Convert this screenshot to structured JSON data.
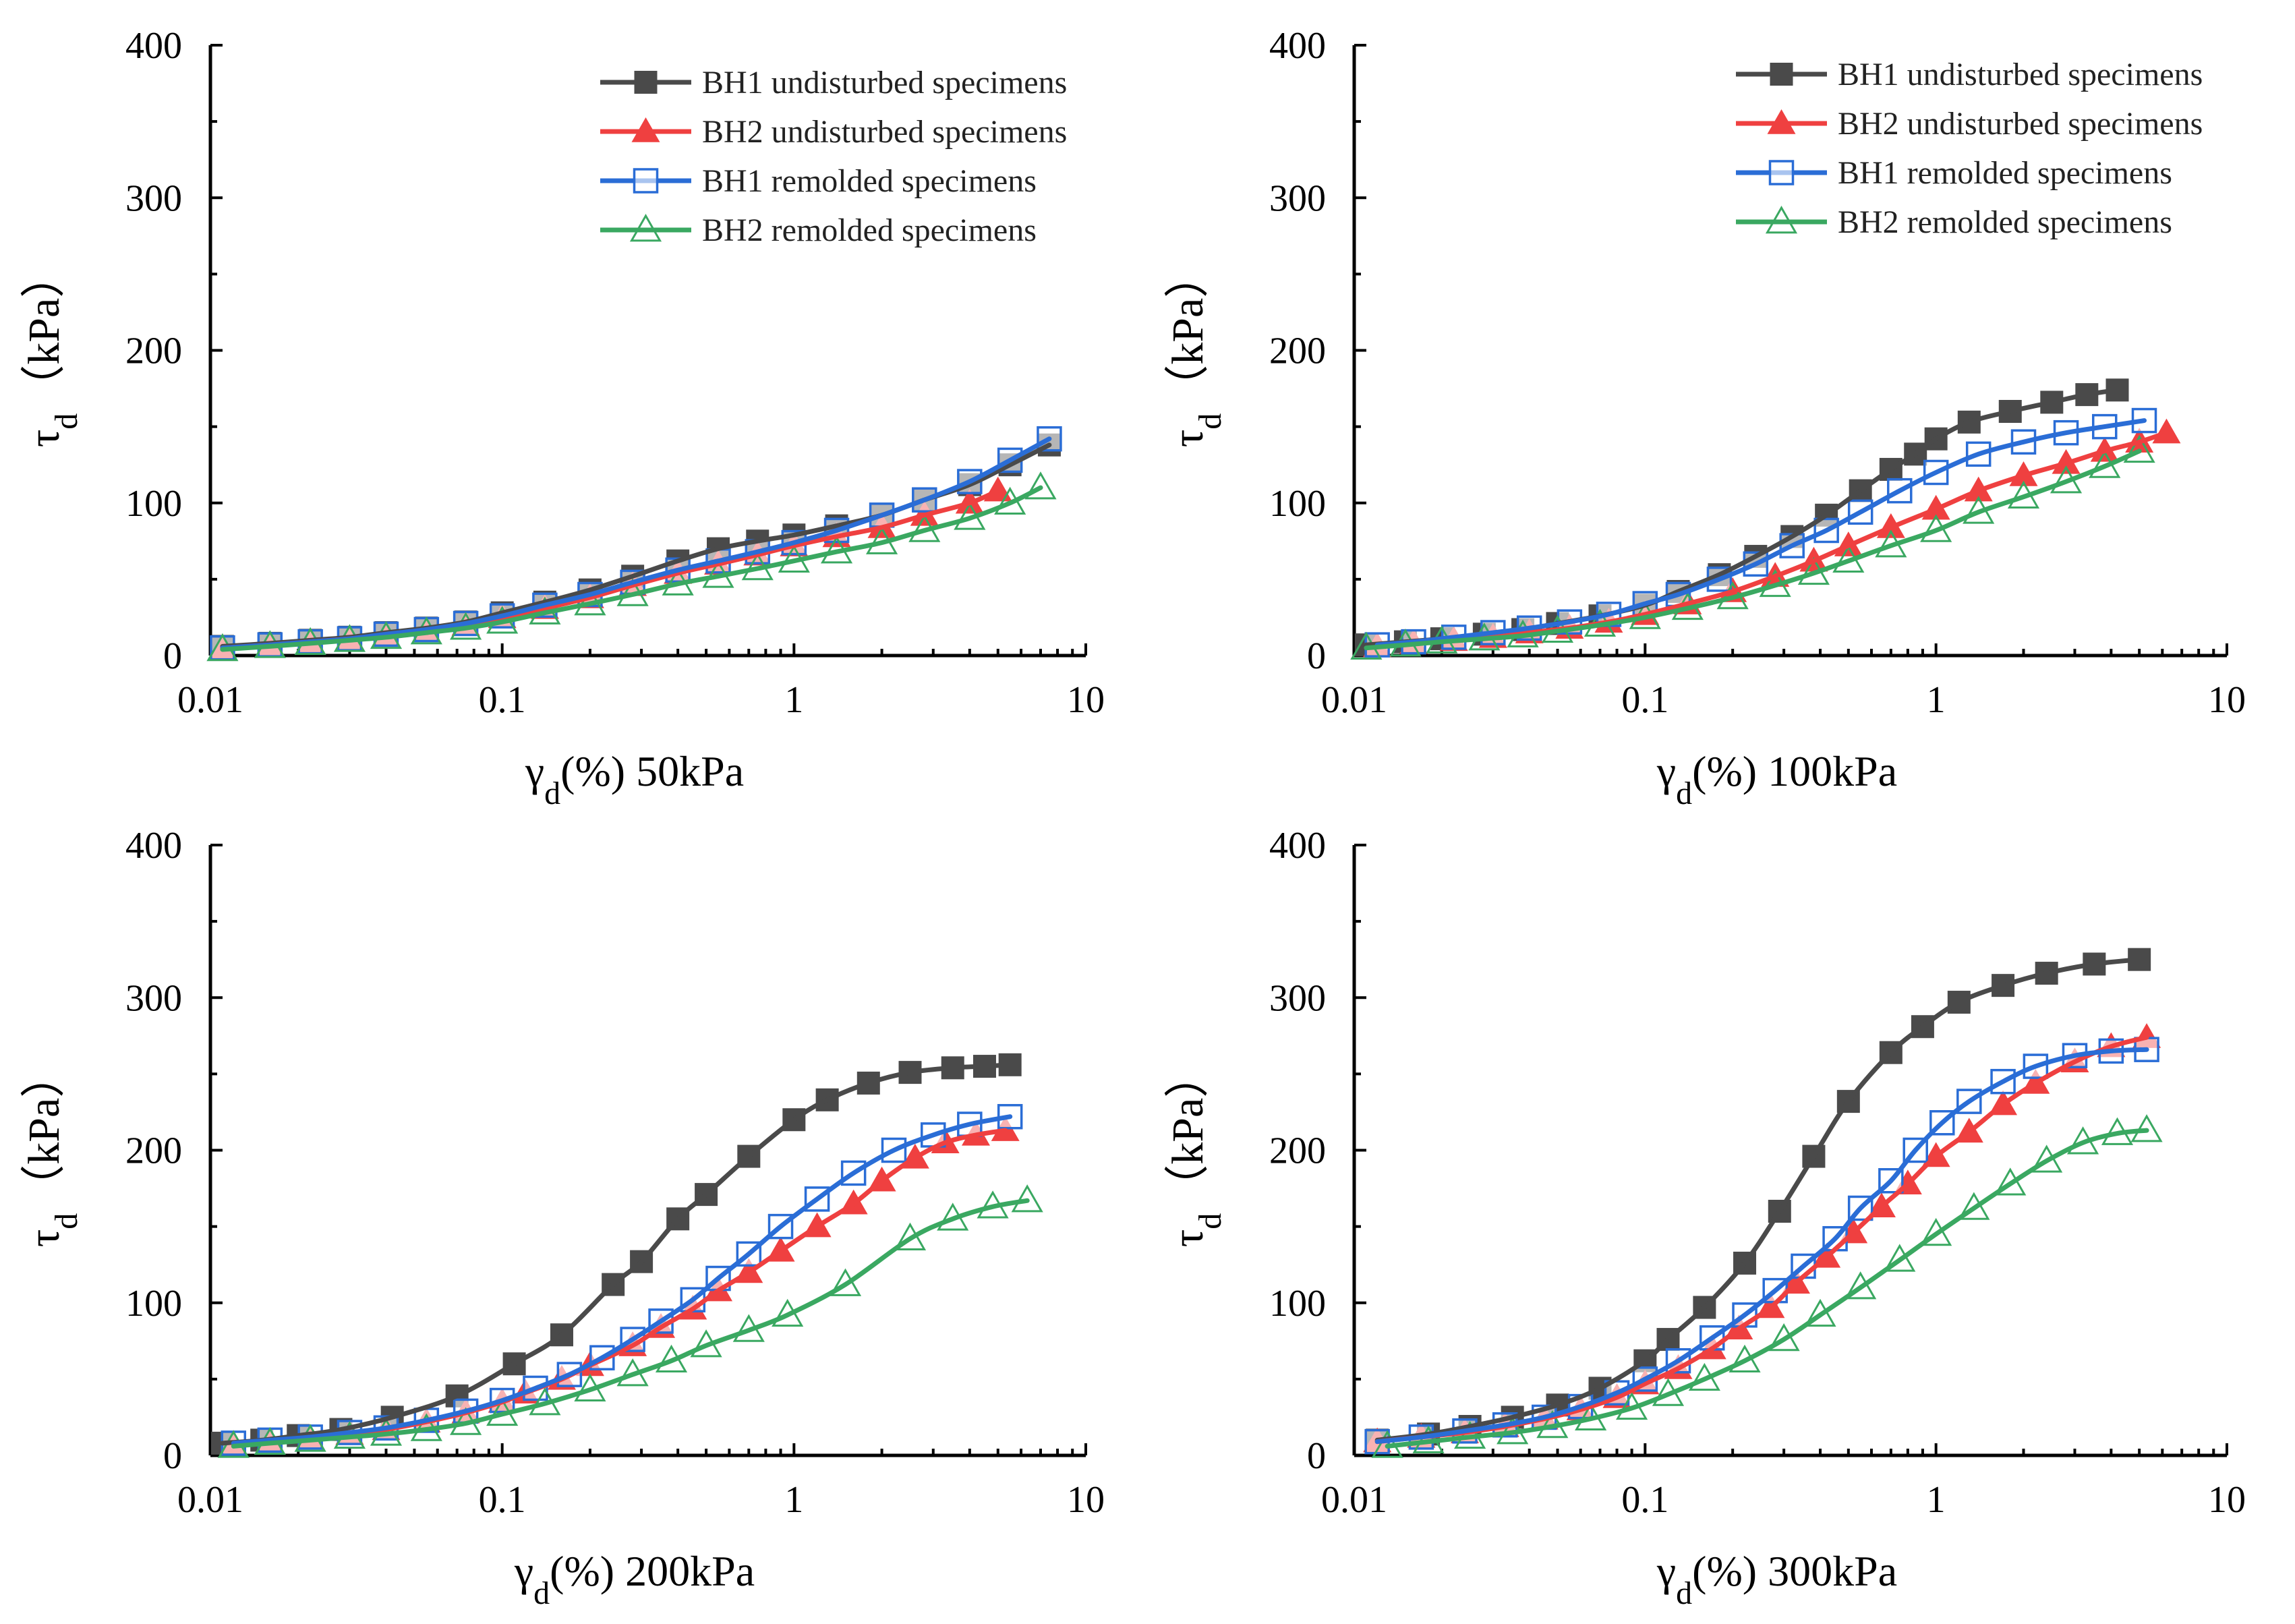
{
  "figure": {
    "y_label_main": "τ",
    "y_label_sub": "d",
    "y_label_unit": "（kPa）",
    "x_label_main": "γ",
    "x_label_sub": "d",
    "x_label_unit": "(%)"
  },
  "series_styles": [
    {
      "name": "BH1 undisturbed specimens",
      "color": "#4a4a4a",
      "marker": "square-filled"
    },
    {
      "name": "BH2 undisturbed specimens",
      "color": "#ef4040",
      "marker": "triangle-filled"
    },
    {
      "name": "BH1 remolded specimens",
      "color": "#2a6dd6",
      "marker": "square-open"
    },
    {
      "name": "BH2 remolded specimens",
      "color": "#3aa861",
      "marker": "triangle-open"
    }
  ],
  "chart_data": [
    {
      "type": "line",
      "title": "50kPa",
      "xlabel": "γd(%) 50kPa",
      "ylabel": "τd（kPa）",
      "xscale": "log",
      "xlim": [
        0.01,
        10
      ],
      "ylim": [
        0,
        400
      ],
      "x_ticks": [
        "0.01",
        "0.1",
        "1",
        "10"
      ],
      "y_ticks": [
        "0",
        "100",
        "200",
        "300",
        "400"
      ],
      "legend": "top-right",
      "series": [
        {
          "name": "BH1 undisturbed specimens",
          "x": [
            0.011,
            0.016,
            0.022,
            0.03,
            0.04,
            0.055,
            0.075,
            0.1,
            0.14,
            0.2,
            0.28,
            0.4,
            0.55,
            0.75,
            1.0,
            1.4,
            2.0,
            2.8,
            4.0,
            5.5,
            7.5
          ],
          "y": [
            6,
            8,
            10,
            12,
            15,
            18,
            22,
            28,
            35,
            43,
            52,
            62,
            70,
            75,
            79,
            85,
            92,
            102,
            112,
            125,
            138
          ]
        },
        {
          "name": "BH2 undisturbed specimens",
          "x": [
            0.011,
            0.016,
            0.022,
            0.03,
            0.04,
            0.055,
            0.075,
            0.1,
            0.14,
            0.2,
            0.28,
            0.4,
            0.55,
            0.75,
            1.0,
            1.4,
            2.0,
            2.8,
            4.0,
            5.0
          ],
          "y": [
            5,
            7,
            9,
            11,
            13,
            16,
            20,
            25,
            31,
            38,
            46,
            54,
            60,
            66,
            72,
            78,
            84,
            92,
            100,
            108
          ]
        },
        {
          "name": "BH1 remolded specimens",
          "x": [
            0.011,
            0.016,
            0.022,
            0.03,
            0.04,
            0.055,
            0.075,
            0.1,
            0.14,
            0.2,
            0.28,
            0.4,
            0.55,
            0.75,
            1.0,
            1.4,
            2.0,
            2.8,
            4.0,
            5.5,
            7.5
          ],
          "y": [
            5,
            7,
            9,
            11,
            14,
            17,
            21,
            26,
            33,
            40,
            48,
            56,
            62,
            68,
            74,
            82,
            92,
            102,
            114,
            128,
            142
          ]
        },
        {
          "name": "BH2 remolded specimens",
          "x": [
            0.011,
            0.016,
            0.022,
            0.03,
            0.04,
            0.055,
            0.075,
            0.1,
            0.14,
            0.2,
            0.28,
            0.4,
            0.55,
            0.75,
            1.0,
            1.4,
            2.0,
            2.8,
            4.0,
            5.5,
            7.0
          ],
          "y": [
            4,
            6,
            8,
            10,
            12,
            15,
            18,
            22,
            28,
            34,
            40,
            47,
            52,
            57,
            62,
            68,
            74,
            82,
            90,
            100,
            110
          ]
        }
      ]
    },
    {
      "type": "line",
      "title": "100kPa",
      "xlabel": "γd(%) 100kPa",
      "ylabel": "τd（kPa）",
      "xscale": "log",
      "xlim": [
        0.01,
        10
      ],
      "ylim": [
        0,
        400
      ],
      "x_ticks": [
        "0.01",
        "0.1",
        "1",
        "10"
      ],
      "y_ticks": [
        "0",
        "100",
        "200",
        "300",
        "400"
      ],
      "legend": "top-right",
      "series": [
        {
          "name": "BH1 undisturbed specimens",
          "x": [
            0.011,
            0.015,
            0.02,
            0.028,
            0.038,
            0.05,
            0.07,
            0.1,
            0.13,
            0.18,
            0.24,
            0.32,
            0.42,
            0.55,
            0.7,
            0.85,
            1.0,
            1.3,
            1.8,
            2.5,
            3.3,
            4.2
          ],
          "y": [
            7,
            9,
            11,
            14,
            17,
            21,
            26,
            33,
            42,
            53,
            65,
            78,
            92,
            108,
            122,
            132,
            142,
            153,
            160,
            166,
            171,
            174
          ]
        },
        {
          "name": "BH2 undisturbed specimens",
          "x": [
            0.012,
            0.016,
            0.022,
            0.03,
            0.04,
            0.055,
            0.075,
            0.1,
            0.14,
            0.2,
            0.28,
            0.38,
            0.5,
            0.7,
            1.0,
            1.4,
            2.0,
            2.8,
            3.8,
            5.0,
            6.2
          ],
          "y": [
            6,
            8,
            10,
            12,
            15,
            18,
            22,
            27,
            34,
            42,
            52,
            62,
            72,
            84,
            96,
            108,
            118,
            126,
            134,
            140,
            146
          ]
        },
        {
          "name": "BH1 remolded specimens",
          "x": [
            0.012,
            0.016,
            0.022,
            0.03,
            0.04,
            0.055,
            0.075,
            0.1,
            0.13,
            0.18,
            0.24,
            0.32,
            0.42,
            0.55,
            0.75,
            1.0,
            1.4,
            2.0,
            2.8,
            3.8,
            5.2
          ],
          "y": [
            7,
            9,
            12,
            15,
            18,
            22,
            27,
            34,
            40,
            50,
            60,
            72,
            82,
            94,
            108,
            120,
            132,
            140,
            146,
            150,
            154
          ]
        },
        {
          "name": "BH2 remolded specimens",
          "x": [
            0.011,
            0.015,
            0.02,
            0.028,
            0.038,
            0.05,
            0.07,
            0.1,
            0.14,
            0.2,
            0.28,
            0.38,
            0.5,
            0.7,
            1.0,
            1.4,
            2.0,
            2.8,
            3.8,
            5.0
          ],
          "y": [
            5,
            7,
            9,
            11,
            13,
            16,
            20,
            25,
            31,
            38,
            46,
            54,
            62,
            72,
            82,
            94,
            104,
            114,
            124,
            134
          ]
        }
      ]
    },
    {
      "type": "line",
      "title": "200kPa",
      "xlabel": "γd(%) 200kPa",
      "ylabel": "τd（kPa）",
      "xscale": "log",
      "xlim": [
        0.01,
        10
      ],
      "ylim": [
        0,
        400
      ],
      "x_ticks": [
        "0.01",
        "0.1",
        "1",
        "10"
      ],
      "y_ticks": [
        "0",
        "100",
        "200",
        "300",
        "400"
      ],
      "legend": "none",
      "series": [
        {
          "name": "BH1 undisturbed specimens",
          "x": [
            0.011,
            0.015,
            0.02,
            0.028,
            0.042,
            0.07,
            0.11,
            0.16,
            0.24,
            0.3,
            0.4,
            0.5,
            0.7,
            1.0,
            1.3,
            1.8,
            2.5,
            3.5,
            4.5,
            5.5
          ],
          "y": [
            8,
            10,
            13,
            17,
            25,
            39,
            60,
            79,
            112,
            127,
            155,
            171,
            196,
            220,
            233,
            244,
            251,
            254,
            255,
            256
          ]
        },
        {
          "name": "BH2 undisturbed specimens",
          "x": [
            0.012,
            0.016,
            0.022,
            0.03,
            0.04,
            0.055,
            0.075,
            0.1,
            0.12,
            0.16,
            0.2,
            0.28,
            0.35,
            0.45,
            0.55,
            0.7,
            0.9,
            1.2,
            1.6,
            2.0,
            2.6,
            3.3,
            4.2,
            5.3
          ],
          "y": [
            7,
            9,
            11,
            14,
            17,
            22,
            28,
            35,
            41,
            50,
            59,
            72,
            84,
            96,
            108,
            120,
            134,
            150,
            165,
            180,
            195,
            205,
            210,
            213
          ]
        },
        {
          "name": "BH1 remolded specimens",
          "x": [
            0.012,
            0.016,
            0.022,
            0.03,
            0.04,
            0.055,
            0.075,
            0.1,
            0.13,
            0.17,
            0.22,
            0.28,
            0.35,
            0.45,
            0.55,
            0.7,
            0.9,
            1.2,
            1.6,
            2.2,
            3.0,
            4.0,
            5.5
          ],
          "y": [
            8,
            10,
            12,
            15,
            18,
            23,
            29,
            36,
            44,
            53,
            64,
            76,
            88,
            102,
            116,
            132,
            150,
            168,
            185,
            200,
            210,
            217,
            222
          ]
        },
        {
          "name": "BH2 remolded specimens",
          "x": [
            0.012,
            0.016,
            0.022,
            0.03,
            0.04,
            0.055,
            0.075,
            0.1,
            0.14,
            0.2,
            0.28,
            0.38,
            0.5,
            0.7,
            0.95,
            1.5,
            2.5,
            3.5,
            4.8,
            6.3
          ],
          "y": [
            6,
            8,
            10,
            12,
            14,
            17,
            21,
            27,
            34,
            43,
            53,
            62,
            72,
            82,
            92,
            112,
            142,
            155,
            163,
            167
          ]
        }
      ]
    },
    {
      "type": "line",
      "title": "300kPa",
      "xlabel": "γd(%) 300kPa",
      "ylabel": "τd（kPa）",
      "xscale": "log",
      "xlim": [
        0.01,
        10
      ],
      "ylim": [
        0,
        400
      ],
      "x_ticks": [
        "0.01",
        "0.1",
        "1",
        "10"
      ],
      "y_ticks": [
        "0",
        "100",
        "200",
        "300",
        "400"
      ],
      "legend": "none",
      "series": [
        {
          "name": "BH1 undisturbed specimens",
          "x": [
            0.012,
            0.018,
            0.025,
            0.035,
            0.05,
            0.07,
            0.1,
            0.12,
            0.16,
            0.22,
            0.29,
            0.38,
            0.5,
            0.7,
            0.9,
            1.2,
            1.7,
            2.4,
            3.5,
            5.0
          ],
          "y": [
            10,
            14,
            19,
            25,
            33,
            44,
            62,
            76,
            97,
            126,
            160,
            196,
            232,
            264,
            281,
            297,
            308,
            316,
            322,
            325
          ]
        },
        {
          "name": "BH2 undisturbed specimens",
          "x": [
            0.012,
            0.017,
            0.024,
            0.033,
            0.045,
            0.06,
            0.08,
            0.1,
            0.13,
            0.17,
            0.21,
            0.27,
            0.33,
            0.42,
            0.52,
            0.65,
            0.8,
            1.0,
            1.3,
            1.7,
            2.2,
            3.0,
            4.0,
            5.3
          ],
          "y": [
            9,
            12,
            15,
            19,
            24,
            30,
            38,
            47,
            57,
            70,
            83,
            97,
            113,
            130,
            146,
            163,
            178,
            196,
            212,
            230,
            244,
            258,
            268,
            274
          ]
        },
        {
          "name": "BH1 remolded specimens",
          "x": [
            0.012,
            0.017,
            0.024,
            0.033,
            0.045,
            0.06,
            0.08,
            0.1,
            0.13,
            0.17,
            0.22,
            0.28,
            0.35,
            0.45,
            0.55,
            0.7,
            0.85,
            1.05,
            1.3,
            1.7,
            2.2,
            3.0,
            4.0,
            5.3
          ],
          "y": [
            9,
            12,
            16,
            20,
            25,
            32,
            41,
            50,
            62,
            77,
            92,
            108,
            124,
            142,
            162,
            180,
            200,
            218,
            232,
            245,
            255,
            262,
            265,
            266
          ]
        },
        {
          "name": "BH2 remolded specimens",
          "x": [
            0.013,
            0.018,
            0.025,
            0.035,
            0.048,
            0.065,
            0.09,
            0.12,
            0.16,
            0.22,
            0.3,
            0.4,
            0.55,
            0.75,
            1.0,
            1.35,
            1.8,
            2.4,
            3.2,
            4.2,
            5.3
          ],
          "y": [
            6,
            9,
            12,
            15,
            19,
            24,
            31,
            40,
            50,
            62,
            76,
            92,
            110,
            128,
            145,
            162,
            178,
            193,
            205,
            211,
            213
          ]
        }
      ]
    }
  ]
}
